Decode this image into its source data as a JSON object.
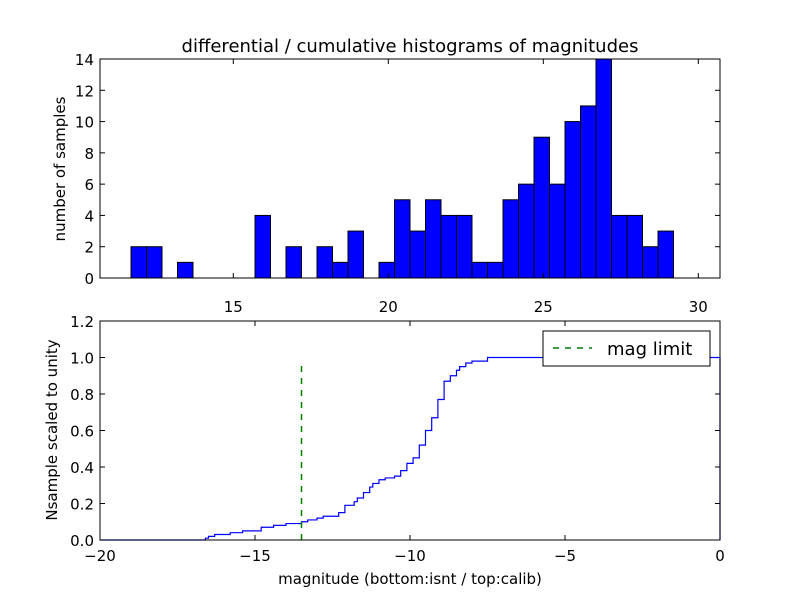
{
  "chart_data": [
    {
      "type": "bar",
      "title": "differential / cumulative histograms of magnitudes",
      "xlabel": "",
      "ylabel": "number of samples",
      "xlim": [
        10.7,
        30.7
      ],
      "ylim": [
        0,
        14
      ],
      "xticks": [
        15,
        20,
        25,
        30
      ],
      "yticks": [
        0,
        2,
        4,
        6,
        8,
        10,
        12,
        14
      ],
      "tick_labels_position": "bottom-outside",
      "bar_color": "#0000ff",
      "bin_width": 0.5,
      "bins": [
        {
          "x": 11.7,
          "value": 2
        },
        {
          "x": 12.2,
          "value": 2
        },
        {
          "x": 13.2,
          "value": 1
        },
        {
          "x": 15.7,
          "value": 4
        },
        {
          "x": 16.7,
          "value": 2
        },
        {
          "x": 17.7,
          "value": 2
        },
        {
          "x": 18.2,
          "value": 1
        },
        {
          "x": 18.7,
          "value": 3
        },
        {
          "x": 19.7,
          "value": 1
        },
        {
          "x": 20.2,
          "value": 5
        },
        {
          "x": 20.7,
          "value": 3
        },
        {
          "x": 21.2,
          "value": 5
        },
        {
          "x": 21.7,
          "value": 4
        },
        {
          "x": 22.2,
          "value": 4
        },
        {
          "x": 22.7,
          "value": 1
        },
        {
          "x": 23.2,
          "value": 1
        },
        {
          "x": 23.7,
          "value": 5
        },
        {
          "x": 24.2,
          "value": 6
        },
        {
          "x": 24.7,
          "value": 9
        },
        {
          "x": 25.2,
          "value": 6
        },
        {
          "x": 25.7,
          "value": 10
        },
        {
          "x": 26.2,
          "value": 11
        },
        {
          "x": 26.7,
          "value": 14
        },
        {
          "x": 27.2,
          "value": 4
        },
        {
          "x": 27.7,
          "value": 4
        },
        {
          "x": 28.2,
          "value": 2
        },
        {
          "x": 28.7,
          "value": 3
        }
      ]
    },
    {
      "type": "line",
      "title": "",
      "xlabel": "magnitude (bottom:isnt / top:calib)",
      "ylabel": "Nsample scaled to unity",
      "xlim": [
        -20,
        0
      ],
      "ylim": [
        0,
        1.2
      ],
      "xticks": [
        -20,
        -15,
        -10,
        -5,
        0
      ],
      "xtick_labels": [
        "−20",
        "−15",
        "−10",
        "−5",
        "0"
      ],
      "yticks": [
        0,
        0.2,
        0.4,
        0.6,
        0.8,
        1.0,
        1.2
      ],
      "ytick_labels": [
        "0.0",
        "0.2",
        "0.4",
        "0.6",
        "0.8",
        "1.0",
        "1.2"
      ],
      "legend": {
        "position": "top-right",
        "entries": [
          "mag limit"
        ]
      },
      "series": [
        {
          "style": "step",
          "color": "#0000ff",
          "x": [
            -20,
            -16.6,
            -16.5,
            -16.3,
            -15.8,
            -15.4,
            -14.8,
            -14.4,
            -14.0,
            -13.5,
            -13.3,
            -13.0,
            -12.8,
            -12.3,
            -12.1,
            -11.8,
            -11.7,
            -11.5,
            -11.3,
            -11.2,
            -11.0,
            -10.8,
            -10.5,
            -10.3,
            -10.1,
            -9.9,
            -9.7,
            -9.5,
            -9.3,
            -9.1,
            -8.9,
            -8.7,
            -8.5,
            -8.4,
            -8.2,
            -8.0,
            -7.5,
            -6.5,
            -5.0,
            -3.5,
            -2.0,
            -0.1,
            0
          ],
          "y": [
            0.0,
            0.01,
            0.02,
            0.03,
            0.04,
            0.05,
            0.07,
            0.08,
            0.09,
            0.1,
            0.11,
            0.12,
            0.13,
            0.15,
            0.19,
            0.21,
            0.23,
            0.26,
            0.29,
            0.31,
            0.33,
            0.34,
            0.35,
            0.38,
            0.42,
            0.45,
            0.52,
            0.6,
            0.67,
            0.77,
            0.87,
            0.9,
            0.93,
            0.95,
            0.97,
            0.98,
            1.0,
            1.0,
            1.0,
            1.0,
            1.0,
            1.0,
            0.0
          ]
        },
        {
          "name": "mag limit",
          "style": "dashed",
          "color": "#008000",
          "x": [
            -13.5,
            -13.5
          ],
          "y": [
            0,
            0.97
          ]
        }
      ]
    }
  ]
}
